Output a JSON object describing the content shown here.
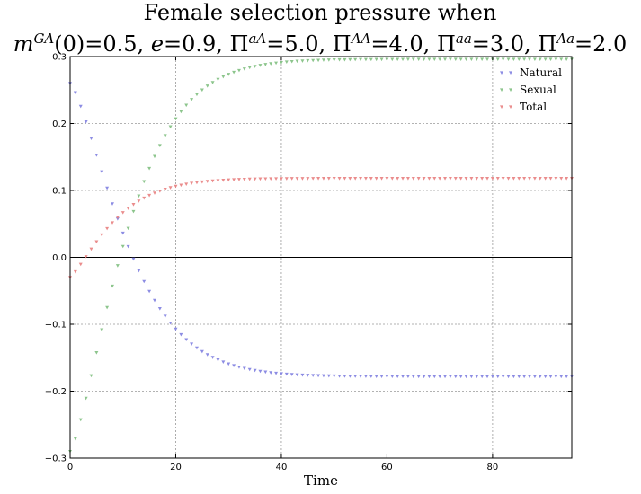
{
  "chart_data": {
    "type": "scatter",
    "title_line1": "Female selection pressure when",
    "title_line2_parts": [
      {
        "text": "m",
        "italic": true
      },
      {
        "text": "GA",
        "italic": true,
        "sup": true
      },
      {
        "text": "(0)=0.5, "
      },
      {
        "text": "e",
        "italic": true
      },
      {
        "text": "=0.9, Π"
      },
      {
        "text": "aA",
        "italic": true,
        "sup": true
      },
      {
        "text": "=5.0, Π"
      },
      {
        "text": "AA",
        "italic": true,
        "sup": true
      },
      {
        "text": "=4.0, Π"
      },
      {
        "text": "aa",
        "italic": true,
        "sup": true
      },
      {
        "text": "=3.0, Π"
      },
      {
        "text": "Aa",
        "italic": true,
        "sup": true
      },
      {
        "text": "=2.0"
      }
    ],
    "xlabel": "Time",
    "ylabel": "",
    "xlim": [
      0,
      95
    ],
    "ylim": [
      -0.3,
      0.3
    ],
    "xticks": [
      0,
      20,
      40,
      60,
      80
    ],
    "yticks": [
      -0.3,
      -0.2,
      -0.1,
      0.0,
      0.1,
      0.2,
      0.3
    ],
    "ytick_labels": [
      "−0.3",
      "−0.2",
      "−0.1",
      "0.0",
      "0.1",
      "0.2",
      "0.3"
    ],
    "xtick_labels": [
      "0",
      "20",
      "40",
      "60",
      "80"
    ],
    "grid": true,
    "zero_line": true,
    "legend_position": "top-right",
    "t_max": 95,
    "series": [
      {
        "name": "Natural",
        "color": "#7f7fe0",
        "model": {
          "start": 0.26,
          "end": -0.178,
          "rate": 0.078,
          "curve": 1.35
        },
        "y_at": {
          "0": 0.26,
          "2": 0.219,
          "5": 0.155,
          "8": 0.077,
          "10": 0.037,
          "11": 0.013,
          "12": -0.005,
          "14": -0.035,
          "20": -0.093,
          "30": -0.145,
          "40": -0.165,
          "50": -0.174,
          "60": -0.177,
          "95": -0.178
        }
      },
      {
        "name": "Sexual",
        "color": "#7fbf7f",
        "model": {
          "start": -0.29,
          "end": 0.296,
          "rate": 0.08,
          "curve": 1.35
        },
        "y_at": {
          "0": -0.29,
          "1": -0.255,
          "3": -0.205,
          "5": -0.133,
          "8": -0.025,
          "9": 0.008,
          "12": 0.083,
          "20": 0.19,
          "30": 0.258,
          "40": 0.282,
          "60": 0.295,
          "95": 0.296
        }
      },
      {
        "name": "Total",
        "color": "#e87f7f",
        "model": {
          "start": -0.03,
          "end": 0.118,
          "rate": 0.105,
          "curve": 1.25
        },
        "y_at": {
          "0": -0.03,
          "2": -0.007,
          "5": 0.03,
          "10": 0.073,
          "15": 0.096,
          "20": 0.106,
          "30": 0.114,
          "40": 0.117,
          "95": 0.118
        }
      }
    ]
  }
}
